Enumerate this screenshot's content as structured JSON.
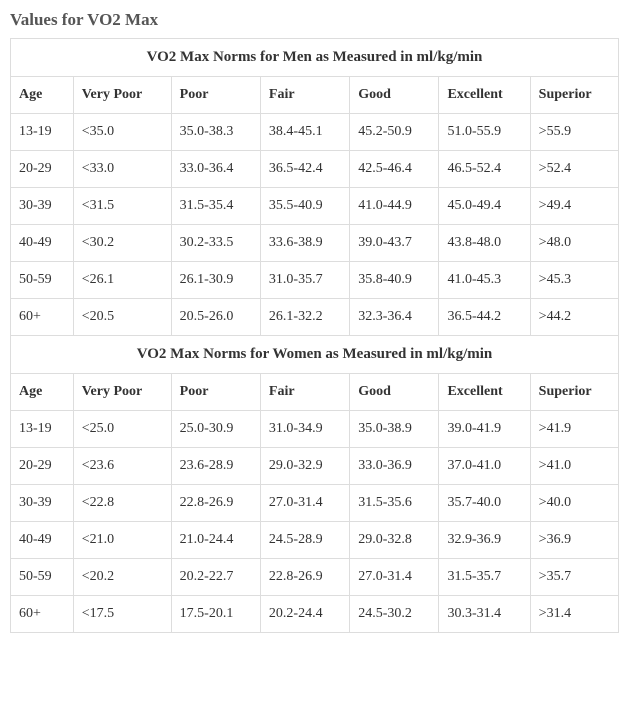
{
  "page_title": "Values for VO2 Max",
  "columns": [
    "Age",
    "Very Poor",
    "Poor",
    "Fair",
    "Good",
    "Excellent",
    "Superior"
  ],
  "men": {
    "title": "VO2 Max Norms for Men as Measured in ml/kg/min",
    "rows": [
      [
        "13-19",
        "<35.0",
        "35.0-38.3",
        "38.4-45.1",
        "45.2-50.9",
        "51.0-55.9",
        ">55.9"
      ],
      [
        "20-29",
        "<33.0",
        "33.0-36.4",
        "36.5-42.4",
        "42.5-46.4",
        "46.5-52.4",
        ">52.4"
      ],
      [
        "30-39",
        "<31.5",
        "31.5-35.4",
        "35.5-40.9",
        "41.0-44.9",
        "45.0-49.4",
        ">49.4"
      ],
      [
        "40-49",
        "<30.2",
        "30.2-33.5",
        "33.6-38.9",
        "39.0-43.7",
        "43.8-48.0",
        ">48.0"
      ],
      [
        "50-59",
        "<26.1",
        "26.1-30.9",
        "31.0-35.7",
        "35.8-40.9",
        "41.0-45.3",
        ">45.3"
      ],
      [
        "60+",
        "<20.5",
        "20.5-26.0",
        "26.1-32.2",
        "32.3-36.4",
        "36.5-44.2",
        ">44.2"
      ]
    ]
  },
  "women": {
    "title": "VO2 Max Norms for Women as Measured in ml/kg/min",
    "rows": [
      [
        "13-19",
        "<25.0",
        "25.0-30.9",
        "31.0-34.9",
        "35.0-38.9",
        "39.0-41.9",
        ">41.9"
      ],
      [
        "20-29",
        "<23.6",
        "23.6-28.9",
        "29.0-32.9",
        "33.0-36.9",
        "37.0-41.0",
        ">41.0"
      ],
      [
        "30-39",
        "<22.8",
        "22.8-26.9",
        "27.0-31.4",
        "31.5-35.6",
        "35.7-40.0",
        ">40.0"
      ],
      [
        "40-49",
        "<21.0",
        "21.0-24.4",
        "24.5-28.9",
        "29.0-32.8",
        "32.9-36.9",
        ">36.9"
      ],
      [
        "50-59",
        "<20.2",
        "20.2-22.7",
        "22.8-26.9",
        "27.0-31.4",
        "31.5-35.7",
        ">35.7"
      ],
      [
        "60+",
        "<17.5",
        "17.5-20.1",
        "20.2-24.4",
        "24.5-30.2",
        "30.3-31.4",
        ">31.4"
      ]
    ]
  },
  "style": {
    "border_color": "#dddddd",
    "text_color": "#333333",
    "heading_color": "#555555",
    "font_family": "Georgia, serif"
  }
}
